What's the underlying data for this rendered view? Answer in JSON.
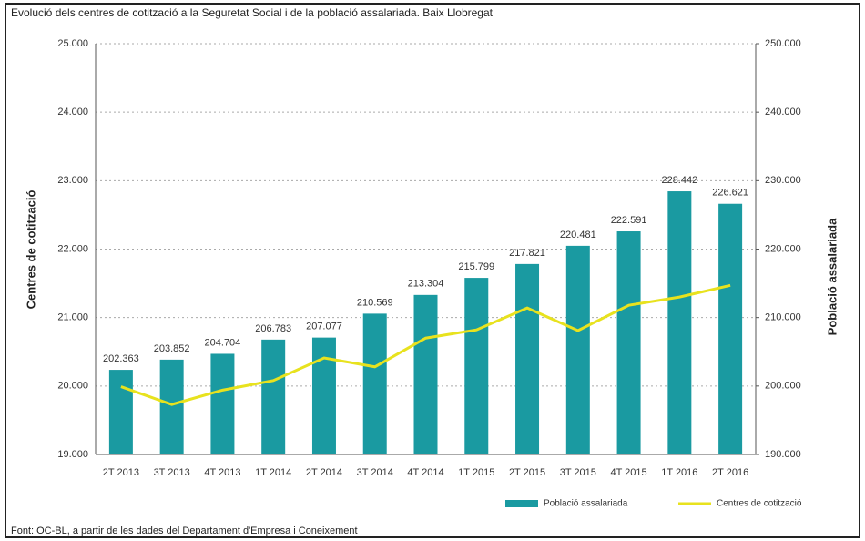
{
  "chart_data": {
    "type": "bar",
    "title": "Evolució dels centres de cotització a la Seguretat Social i de la població assalariada. Baix Llobregat",
    "ylabel": "Centres de cotització",
    "y2label": "Població assalariada",
    "source": "Font: OC-BL, a partir de les dades del Departament d'Empresa i Coneixement",
    "categories": [
      "2T 2013",
      "3T 2013",
      "4T 2013",
      "1T 2014",
      "2T 2014",
      "3T 2014",
      "4T 2014",
      "1T 2015",
      "2T 2015",
      "3T 2015",
      "4T 2015",
      "1T 2016",
      "2T 2016"
    ],
    "series": [
      {
        "name": "Població assalariada",
        "type": "bar",
        "axis": "y2",
        "color": "#1a9aa1",
        "values": [
          202363,
          203852,
          204704,
          206783,
          207077,
          210569,
          213304,
          215799,
          217821,
          220481,
          222591,
          228442,
          226621
        ],
        "value_labels": [
          "202.363",
          "203.852",
          "204.704",
          "206.783",
          "207.077",
          "210.569",
          "213.304",
          "215.799",
          "217.821",
          "220.481",
          "222.591",
          "228.442",
          "226.621"
        ]
      },
      {
        "name": "Centres de cotització",
        "type": "line",
        "color": "#e8e21e",
        "values": [
          19990,
          19730,
          19940,
          20080,
          20410,
          20280,
          20700,
          20820,
          21140,
          20810,
          21180,
          21300,
          21470
        ]
      }
    ],
    "ylim": [
      19000,
      25000
    ],
    "yticks": [
      {
        "value": 19000,
        "label": "19.000"
      },
      {
        "value": 20000,
        "label": "20.000"
      },
      {
        "value": 21000,
        "label": "21.000"
      },
      {
        "value": 22000,
        "label": "22.000"
      },
      {
        "value": 23000,
        "label": "23.000"
      },
      {
        "value": 24000,
        "label": "24.000"
      },
      {
        "value": 25000,
        "label": "25.000"
      }
    ],
    "y2lim": [
      190000,
      250000
    ],
    "y2ticks": [
      {
        "value": 190000,
        "label": "190.000"
      },
      {
        "value": 200000,
        "label": "200.000"
      },
      {
        "value": 210000,
        "label": "210.000"
      },
      {
        "value": 220000,
        "label": "220.000"
      },
      {
        "value": 230000,
        "label": "230.000"
      },
      {
        "value": 240000,
        "label": "240.000"
      },
      {
        "value": 250000,
        "label": "250.000"
      }
    ],
    "grid": true
  }
}
